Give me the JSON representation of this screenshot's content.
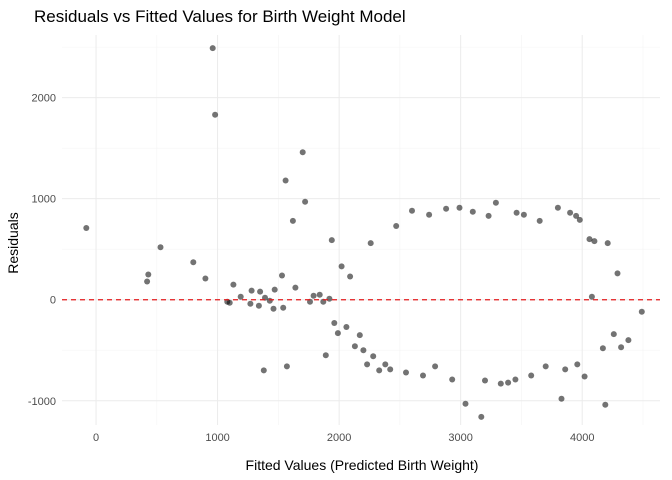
{
  "chart_data": {
    "type": "scatter",
    "title": "Residuals vs Fitted Values for Birth Weight Model",
    "xlabel": "Fitted Values (Predicted Birth Weight)",
    "ylabel": "Residuals",
    "xlim": [
      -280,
      4640
    ],
    "ylim": [
      -1240,
      2620
    ],
    "x_ticks": [
      0,
      1000,
      2000,
      3000,
      4000
    ],
    "y_ticks": [
      -1000,
      0,
      1000,
      2000
    ],
    "x_tick_labels": [
      "0",
      "1000",
      "2000",
      "3000",
      "4000"
    ],
    "y_tick_labels": [
      "-1000",
      "0",
      "1000",
      "2000"
    ],
    "grid": true,
    "legend": "none",
    "reference_line": {
      "y": 0,
      "style": "dashed",
      "color": "#e41a1c"
    },
    "point_color": "#000000",
    "point_alpha": 0.55,
    "series": [
      {
        "x": [
          -80,
          420,
          430,
          530,
          800,
          900,
          960,
          980,
          1080,
          1100,
          1130,
          1190,
          1270,
          1280,
          1340,
          1350,
          1380,
          1390,
          1430,
          1460,
          1470,
          1530,
          1540,
          1560,
          1570,
          1620,
          1640,
          1700,
          1720,
          1760,
          1790,
          1840,
          1870,
          1890,
          1920,
          1940,
          1960,
          1990,
          2020,
          2060,
          2090,
          2130,
          2170,
          2200,
          2230,
          2260,
          2280,
          2330,
          2380,
          2420,
          2470,
          2550,
          2600,
          2690,
          2740,
          2790,
          2880,
          2930,
          2990,
          3040,
          3100,
          3170,
          3200,
          3230,
          3290,
          3330,
          3390,
          3450,
          3460,
          3520,
          3580,
          3650,
          3700,
          3800,
          3830,
          3860,
          3900,
          3950,
          3960,
          3980,
          4020,
          4060,
          4080,
          4100,
          4170,
          4190,
          4210,
          4260,
          4290,
          4320,
          4380,
          4490
        ],
        "y": [
          710,
          180,
          250,
          520,
          370,
          210,
          2490,
          1830,
          -20,
          -30,
          150,
          30,
          -40,
          90,
          -60,
          80,
          -700,
          20,
          -10,
          -90,
          100,
          240,
          -80,
          1180,
          -660,
          780,
          120,
          1460,
          970,
          -20,
          40,
          50,
          -20,
          -550,
          10,
          590,
          -230,
          -330,
          330,
          -270,
          230,
          -460,
          -350,
          -500,
          -640,
          560,
          -560,
          -700,
          -640,
          -690,
          730,
          -720,
          880,
          -750,
          840,
          -660,
          900,
          -790,
          910,
          -1030,
          870,
          -1160,
          -800,
          830,
          960,
          -830,
          -820,
          -790,
          860,
          840,
          -750,
          780,
          -660,
          910,
          -980,
          -690,
          860,
          830,
          -640,
          790,
          -760,
          600,
          30,
          580,
          -480,
          -1040,
          560,
          -340,
          260,
          -470,
          -400,
          -120
        ]
      }
    ]
  }
}
